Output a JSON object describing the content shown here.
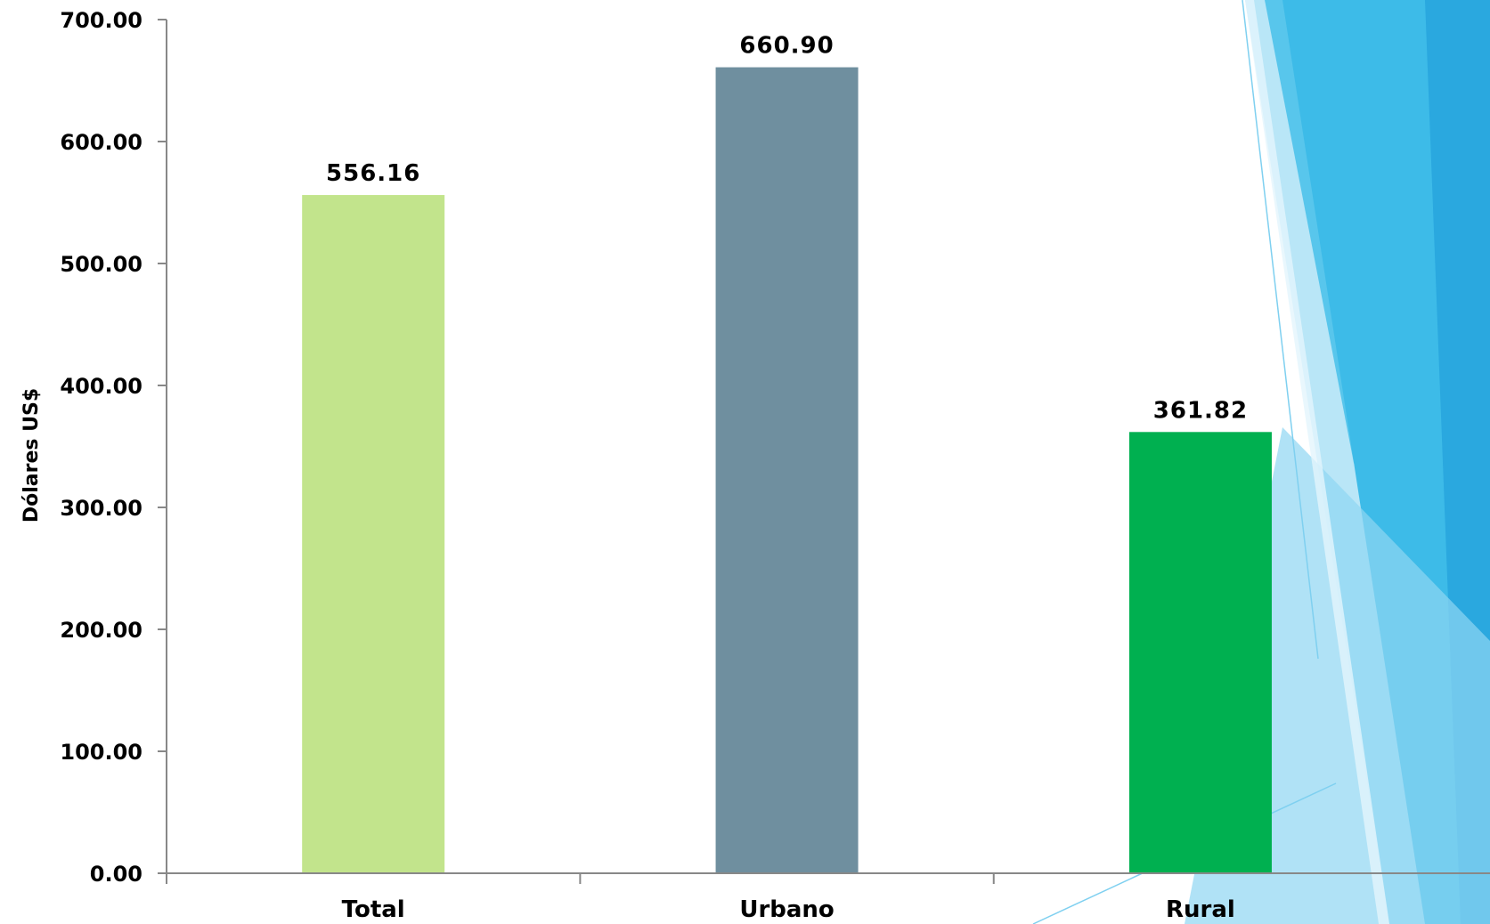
{
  "chart_data": {
    "type": "bar",
    "categories": [
      "Total",
      "Urbano",
      "Rural"
    ],
    "values": [
      556.16,
      660.9,
      361.82
    ],
    "value_labels": [
      "556.16",
      "660.90",
      "361.82"
    ],
    "bar_colors": [
      "#c2e48c",
      "#6f8f9f",
      "#00b050"
    ],
    "ylabel": "Dólares US$",
    "xlabel": "",
    "title": "",
    "ylim": [
      0,
      700
    ],
    "yticks": [
      0,
      100,
      200,
      300,
      400,
      500,
      600,
      700
    ],
    "ytick_labels": [
      "0.00",
      "100.00",
      "200.00",
      "300.00",
      "400.00",
      "500.00",
      "600.00",
      "700.00"
    ],
    "grid": false,
    "legend": "none"
  },
  "colors": {
    "axis": "#888888",
    "decor_light": "#a9def3",
    "decor_mid": "#4ec2ea",
    "decor_dark": "#2aa8df"
  }
}
